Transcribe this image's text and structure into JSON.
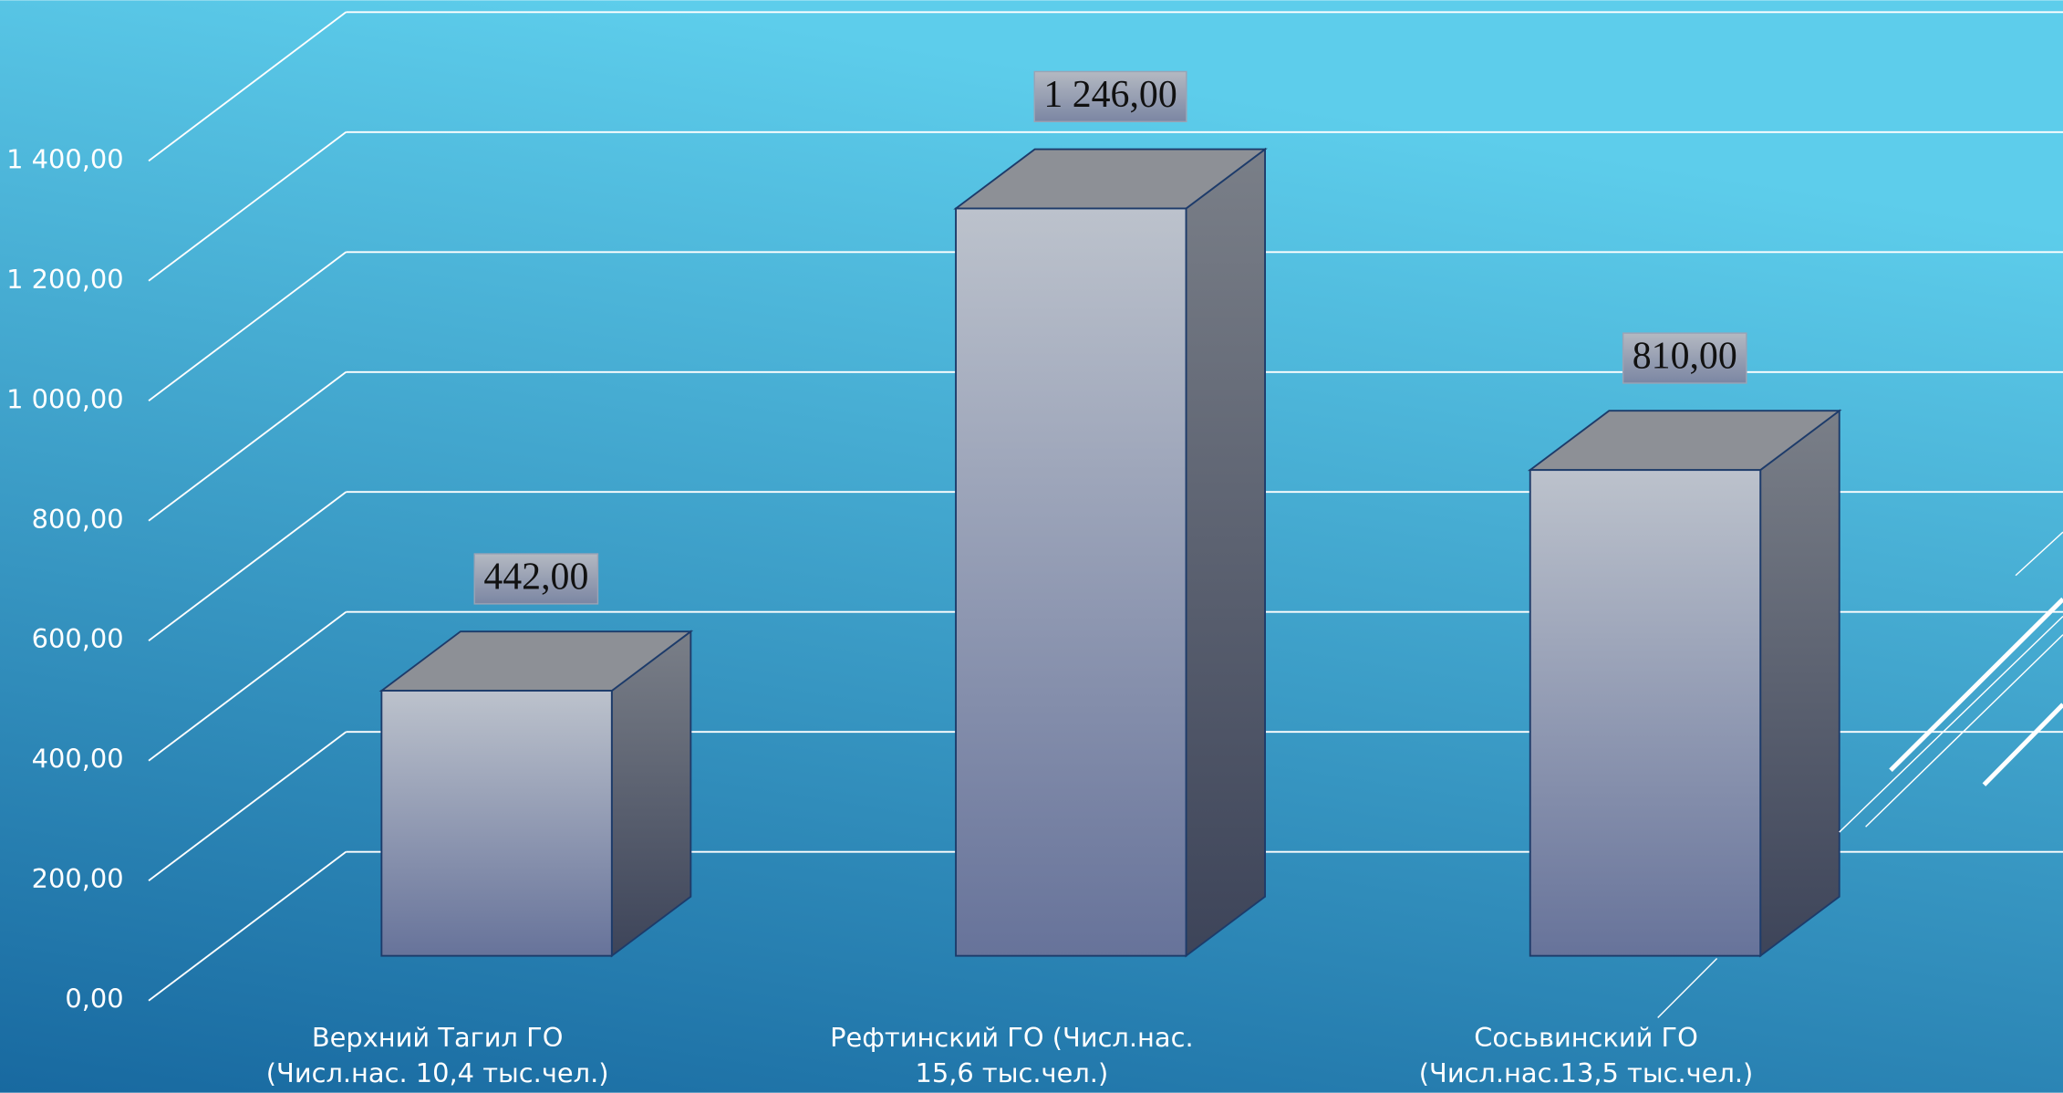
{
  "chart_data": {
    "type": "bar3d",
    "categories": [
      "Верхний Тагил ГО (Числ.нас. 10,4 тыс.чел.)",
      "Рефтинский ГО (Числ.нас. 15,6 тыс.чел.)",
      "Сосьвинский ГО (Числ.нас.13,5 тыс.чел.)"
    ],
    "values": [
      442,
      1246,
      810
    ],
    "value_labels": [
      "442,00",
      "1 246,00",
      "810,00"
    ],
    "ylim": [
      0,
      1400
    ],
    "yticks": [
      {
        "value": 0,
        "label": "0,00"
      },
      {
        "value": 200,
        "label": "200,00"
      },
      {
        "value": 400,
        "label": "400,00"
      },
      {
        "value": 600,
        "label": "600,00"
      },
      {
        "value": 800,
        "label": "800,00"
      },
      {
        "value": 1000,
        "label": "1 000,00"
      },
      {
        "value": 1200,
        "label": "1 200,00"
      },
      {
        "value": 1400,
        "label": "1 400,00"
      }
    ],
    "grid": true
  }
}
